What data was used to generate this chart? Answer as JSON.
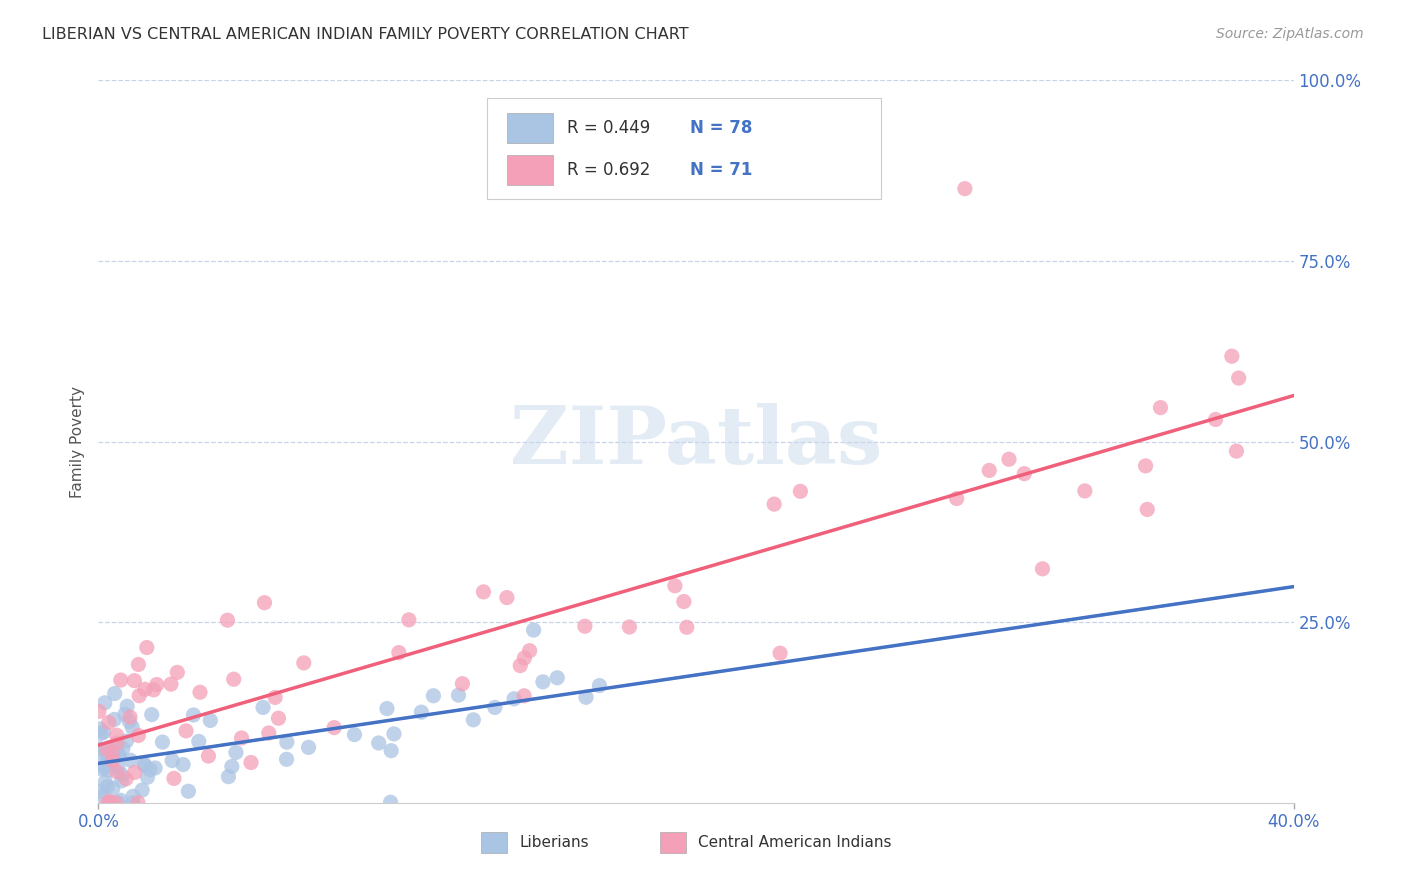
{
  "title": "LIBERIAN VS CENTRAL AMERICAN INDIAN FAMILY POVERTY CORRELATION CHART",
  "source": "Source: ZipAtlas.com",
  "ylabel": "Family Poverty",
  "liberian_color": "#aac4e4",
  "central_american_color": "#f4a0b8",
  "liberian_line_color": "#4472c4",
  "central_american_line_color": "#f0607a",
  "dashed_line_color": "#8899cc",
  "background_color": "#ffffff",
  "grid_color": "#c8d4e8",
  "watermark_color": "#c8d8ec",
  "r_label_color": "#333333",
  "n_label_color": "#4472c4",
  "right_tick_color": "#4472c4",
  "title_color": "#333333",
  "source_color": "#999999",
  "legend_bottom1": "Liberians",
  "legend_bottom2": "Central American Indians",
  "xmin": 0,
  "xmax": 40,
  "ymin": 0,
  "ymax": 100,
  "lib_R": 0.449,
  "lib_N": 78,
  "ca_R": 0.692,
  "ca_N": 71
}
